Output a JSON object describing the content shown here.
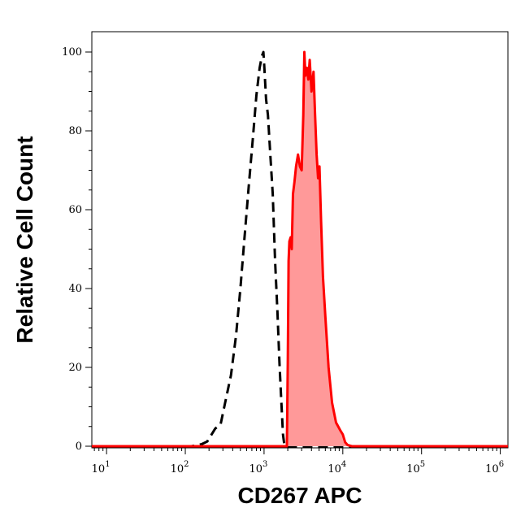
{
  "chart_data": {
    "type": "area",
    "title": "",
    "xlabel": "CD267 APC",
    "ylabel": "Relative Cell Count",
    "xscale": "log",
    "xlim": [
      6.5,
      1250000
    ],
    "ylim": [
      0,
      100
    ],
    "grid": false,
    "x_ticks": [
      {
        "base": "10",
        "exp": "1",
        "value": 10
      },
      {
        "base": "10",
        "exp": "2",
        "value": 100
      },
      {
        "base": "10",
        "exp": "3",
        "value": 1000
      },
      {
        "base": "10",
        "exp": "4",
        "value": 10000
      },
      {
        "base": "10",
        "exp": "5",
        "value": 100000
      },
      {
        "base": "10",
        "exp": "6",
        "value": 1000000
      }
    ],
    "y_ticks": [
      "0",
      "20",
      "40",
      "60",
      "80",
      "100"
    ],
    "y_tick_values": [
      0,
      20,
      40,
      60,
      80,
      100
    ],
    "series": [
      {
        "style": "dashed",
        "color": "#000000",
        "fill": "none",
        "points": [
          [
            6.5,
            0
          ],
          [
            40,
            0
          ],
          [
            120,
            0
          ],
          [
            160,
            0.5
          ],
          [
            190,
            1.2
          ],
          [
            240,
            4.5
          ],
          [
            280,
            5.5
          ],
          [
            320,
            11
          ],
          [
            380,
            18
          ],
          [
            440,
            28
          ],
          [
            500,
            40
          ],
          [
            560,
            52
          ],
          [
            640,
            66
          ],
          [
            720,
            78
          ],
          [
            800,
            89
          ],
          [
            880,
            96
          ],
          [
            940,
            99
          ],
          [
            980,
            100
          ],
          [
            1010,
            96
          ],
          [
            1060,
            88
          ],
          [
            1120,
            84
          ],
          [
            1200,
            74
          ],
          [
            1290,
            64
          ],
          [
            1380,
            47
          ],
          [
            1480,
            34
          ],
          [
            1570,
            21
          ],
          [
            1650,
            12
          ],
          [
            1740,
            3
          ],
          [
            1820,
            0
          ],
          [
            2000,
            0
          ],
          [
            5000,
            0
          ],
          [
            1250000,
            0
          ]
        ]
      },
      {
        "style": "solid",
        "color": "#ff0000",
        "fill": "#ff9999",
        "points": [
          [
            6.5,
            0
          ],
          [
            1000,
            0
          ],
          [
            1950,
            0
          ],
          [
            2000,
            21
          ],
          [
            2050,
            47
          ],
          [
            2100,
            52
          ],
          [
            2180,
            53
          ],
          [
            2250,
            50
          ],
          [
            2330,
            64
          ],
          [
            2430,
            67
          ],
          [
            2550,
            71
          ],
          [
            2700,
            74
          ],
          [
            2850,
            71
          ],
          [
            3000,
            70
          ],
          [
            3150,
            84
          ],
          [
            3250,
            100
          ],
          [
            3350,
            94
          ],
          [
            3500,
            96
          ],
          [
            3650,
            93
          ],
          [
            3800,
            98
          ],
          [
            4000,
            90
          ],
          [
            4250,
            95
          ],
          [
            4450,
            84
          ],
          [
            4650,
            74
          ],
          [
            4850,
            68
          ],
          [
            5050,
            71
          ],
          [
            5300,
            57
          ],
          [
            5600,
            43
          ],
          [
            6000,
            33
          ],
          [
            6600,
            20
          ],
          [
            7300,
            11
          ],
          [
            8200,
            6
          ],
          [
            9300,
            4
          ],
          [
            10000,
            3
          ],
          [
            10700,
            1
          ],
          [
            11500,
            0.3
          ],
          [
            13000,
            0
          ],
          [
            1250000,
            0
          ]
        ]
      }
    ]
  }
}
